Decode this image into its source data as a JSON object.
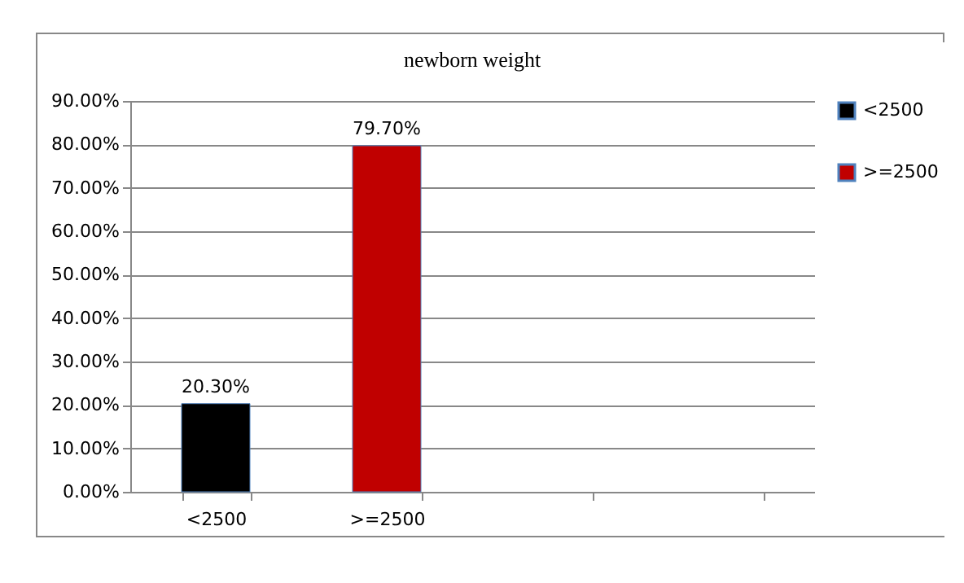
{
  "chart_data": {
    "type": "bar",
    "title": "newborn weight",
    "categories": [
      "<2500",
      ">=2500",
      null,
      null
    ],
    "series": [
      {
        "name": "<2500",
        "color": "#000000",
        "values": [
          20.3,
          null,
          null,
          null
        ],
        "value_labels": [
          "20.30%",
          null,
          null,
          null
        ]
      },
      {
        "name": ">=2500",
        "color": "#c00000",
        "values": [
          null,
          79.7,
          null,
          null
        ],
        "value_labels": [
          null,
          "79.70%",
          null,
          null
        ]
      }
    ],
    "ylim": [
      0,
      90
    ],
    "yticks": [
      {
        "value": 0,
        "label": "0.00%"
      },
      {
        "value": 10,
        "label": "10.00%"
      },
      {
        "value": 20,
        "label": "20.00%"
      },
      {
        "value": 30,
        "label": "30.00%"
      },
      {
        "value": 40,
        "label": "40.00%"
      },
      {
        "value": 50,
        "label": "50.00%"
      },
      {
        "value": 60,
        "label": "60.00%"
      },
      {
        "value": 70,
        "label": "70.00%"
      },
      {
        "value": 80,
        "label": "80.00%"
      },
      {
        "value": 90,
        "label": "90.00%"
      }
    ],
    "grid": "y",
    "legend": "right"
  }
}
